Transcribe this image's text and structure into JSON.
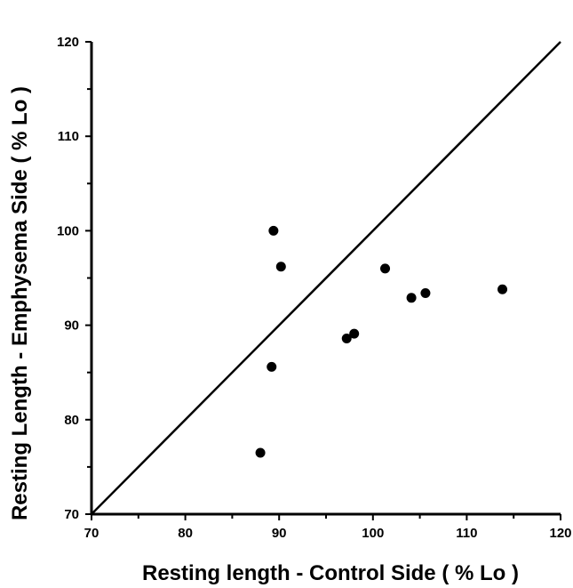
{
  "chart_data": {
    "type": "scatter",
    "title": "",
    "xlabel": "Resting length - Control Side  ( % Lo )",
    "ylabel": "Resting Length - Emphysema Side  ( % Lo )",
    "xlim": [
      70,
      120
    ],
    "ylim": [
      70,
      120
    ],
    "x_ticks": [
      "70",
      "80",
      "90",
      "100",
      "110",
      "120"
    ],
    "y_ticks": [
      "70",
      "80",
      "90",
      "100",
      "110",
      "120"
    ],
    "grid": false,
    "legend": "none",
    "identity_line": {
      "from": [
        70,
        70
      ],
      "to": [
        120,
        120
      ]
    },
    "points": [
      {
        "x": 88.0,
        "y": 76.5
      },
      {
        "x": 89.2,
        "y": 85.6
      },
      {
        "x": 89.4,
        "y": 100.0
      },
      {
        "x": 90.2,
        "y": 96.2
      },
      {
        "x": 97.2,
        "y": 88.6
      },
      {
        "x": 98.0,
        "y": 89.1
      },
      {
        "x": 101.3,
        "y": 96.0
      },
      {
        "x": 104.1,
        "y": 92.9
      },
      {
        "x": 105.6,
        "y": 93.4
      },
      {
        "x": 113.8,
        "y": 93.8
      }
    ],
    "marker_color": "#000000"
  }
}
